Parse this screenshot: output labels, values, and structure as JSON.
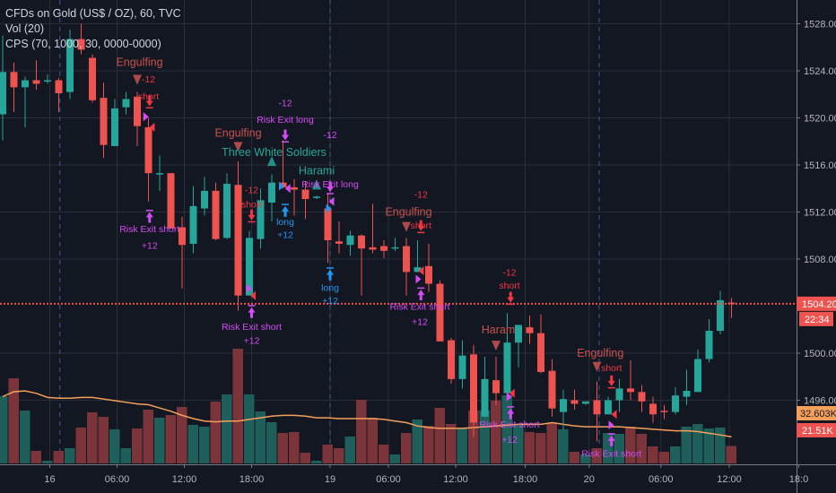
{
  "header": {
    "symbol_line": "CFDs on Gold (US$ / OZ), 60, TVC",
    "volume_indicator": "Vol (20)",
    "strategy_indicator": "CPS (70, 1000, 30, 0000-0000)"
  },
  "colors": {
    "background": "#131722",
    "up": "#26a69a",
    "down": "#ef5350",
    "volume_up": "#1f5f5b",
    "volume_down": "#7b3439",
    "volume_ma": "#f5a05a",
    "grid": "#2a2e39",
    "pattern_bear": "#c9524f",
    "pattern_bull": "#26a69a",
    "signal_short": "#f23645",
    "risk_exit": "#d54cf5",
    "signal_long": "#2196f3"
  },
  "chart_data": {
    "type": "candlestick",
    "title": "CFDs on Gold (US$ / OZ), 60, TVC",
    "ylim": [
      1490.5,
      1530
    ],
    "y_ticks": [
      "1528.00",
      "1524.00",
      "1520.00",
      "1516.00",
      "1512.00",
      "1508.00",
      "1500.00",
      "1496.00"
    ],
    "y_tick_values": [
      1528,
      1524,
      1520,
      1516,
      1512,
      1508,
      1500,
      1496
    ],
    "x_ticks": [
      {
        "label": "16",
        "at": 4.2
      },
      {
        "label": "06:00",
        "at": 10.2
      },
      {
        "label": "12:00",
        "at": 16.2
      },
      {
        "label": "18:00",
        "at": 22.2
      },
      {
        "label": "19",
        "at": 29.2
      },
      {
        "label": "06:00",
        "at": 34.4
      },
      {
        "label": "12:00",
        "at": 40.4
      },
      {
        "label": "18:00",
        "at": 46.6
      },
      {
        "label": "20",
        "at": 52.3
      },
      {
        "label": "06:00",
        "at": 58.7
      },
      {
        "label": "12:00",
        "at": 64.8
      },
      {
        "label": "18:0",
        "at": 71
      }
    ],
    "session_breaks": [
      5.1,
      29.2,
      53.2
    ],
    "ohlc": [
      [
        1520.3,
        1527.0,
        1518.1,
        1523.9
      ],
      [
        1523.9,
        1524.7,
        1520.5,
        1522.6
      ],
      [
        1522.6,
        1523.5,
        1519.2,
        1523.2
      ],
      [
        1523.2,
        1524.9,
        1522.4,
        1522.9
      ],
      [
        1523.1,
        1523.7,
        1522.9,
        1523.2
      ],
      [
        1523.2,
        1523.4,
        1520.5,
        1522.1
      ],
      [
        1522.2,
        1527.5,
        1521.6,
        1526.7
      ],
      [
        1526.7,
        1528.0,
        1525.4,
        1525.8
      ],
      [
        1525.1,
        1525.4,
        1521.3,
        1521.5
      ],
      [
        1521.7,
        1523.0,
        1516.6,
        1517.7
      ],
      [
        1517.6,
        1521.6,
        1517.6,
        1520.8
      ],
      [
        1520.9,
        1522.2,
        1520.3,
        1521.6
      ],
      [
        1521.8,
        1522.2,
        1517.6,
        1519.3
      ],
      [
        1519.2,
        1520.0,
        1512.9,
        1515.3
      ],
      [
        1515.2,
        1516.8,
        1513.8,
        1515.3
      ],
      [
        1515.3,
        1515.3,
        1510.6,
        1510.6
      ],
      [
        1510.7,
        1511.6,
        1505.5,
        1509.2
      ],
      [
        1509.3,
        1514.2,
        1508.5,
        1512.5
      ],
      [
        1512.3,
        1515.0,
        1511.7,
        1513.8
      ],
      [
        1513.8,
        1514.5,
        1509.6,
        1509.7
      ],
      [
        1509.8,
        1515.3,
        1509.7,
        1514.4
      ],
      [
        1514.3,
        1516.3,
        1503.6,
        1504.9
      ],
      [
        1504.9,
        1510.4,
        1504.9,
        1509.8
      ],
      [
        1509.7,
        1514.0,
        1508.9,
        1513.0
      ],
      [
        1512.8,
        1515.2,
        1511.2,
        1514.5
      ],
      [
        1514.5,
        1518.1,
        1514.0,
        1514.1
      ],
      [
        1514.1,
        1514.8,
        1511.7,
        1513.9
      ],
      [
        1513.9,
        1514.6,
        1511.4,
        1513.1
      ],
      [
        1513.2,
        1513.4,
        1513.1,
        1513.3
      ],
      [
        1512.3,
        1513.6,
        1507.7,
        1509.6
      ],
      [
        1509.5,
        1511.2,
        1508.5,
        1509.3
      ],
      [
        1509.2,
        1510.4,
        1508.3,
        1510.0
      ],
      [
        1510.0,
        1510.1,
        1504.9,
        1508.9
      ],
      [
        1509.0,
        1512.7,
        1508.5,
        1508.8
      ],
      [
        1509.1,
        1509.6,
        1508.1,
        1508.7
      ],
      [
        1508.9,
        1509.8,
        1508.7,
        1509.0
      ],
      [
        1509.1,
        1509.8,
        1504.9,
        1506.9
      ],
      [
        1506.9,
        1509.6,
        1506.9,
        1507.3
      ],
      [
        1507.4,
        1509.3,
        1505.2,
        1505.9
      ],
      [
        1505.9,
        1506.2,
        1501.0,
        1501.0
      ],
      [
        1501.1,
        1501.3,
        1497.4,
        1497.8
      ],
      [
        1497.8,
        1501.1,
        1497.0,
        1499.8
      ],
      [
        1499.9,
        1500.7,
        1492.9,
        1494.1
      ],
      [
        1494.6,
        1499.7,
        1494.6,
        1497.8
      ],
      [
        1497.7,
        1499.7,
        1495.6,
        1496.6
      ],
      [
        1496.6,
        1503.4,
        1496.6,
        1500.9
      ],
      [
        1500.9,
        1502.4,
        1498.8,
        1502.4
      ],
      [
        1502.2,
        1503.2,
        1500.8,
        1501.7
      ],
      [
        1501.7,
        1503.3,
        1498.3,
        1498.4
      ],
      [
        1498.5,
        1499.5,
        1494.6,
        1495.3
      ],
      [
        1495.0,
        1496.9,
        1493.5,
        1496.1
      ],
      [
        1496.0,
        1496.9,
        1495.2,
        1495.7
      ],
      [
        1495.7,
        1495.9,
        1495.6,
        1495.9
      ],
      [
        1496.0,
        1497.6,
        1492.5,
        1494.8
      ],
      [
        1494.8,
        1496.3,
        1494.8,
        1496.0
      ],
      [
        1496.0,
        1497.8,
        1495.0,
        1497.0
      ],
      [
        1497.0,
        1499.4,
        1496.0,
        1496.7
      ],
      [
        1496.7,
        1497.3,
        1495.0,
        1495.9
      ],
      [
        1495.7,
        1496.3,
        1494.1,
        1494.8
      ],
      [
        1495.1,
        1495.6,
        1494.4,
        1495.0
      ],
      [
        1495.0,
        1497.1,
        1494.8,
        1496.4
      ],
      [
        1496.3,
        1498.6,
        1495.6,
        1496.8
      ],
      [
        1496.7,
        1500.3,
        1496.7,
        1499.5
      ],
      [
        1499.5,
        1502.9,
        1499.2,
        1501.9
      ],
      [
        1501.9,
        1505.3,
        1501.6,
        1504.5
      ],
      [
        1504.3,
        1504.7,
        1503.0,
        1504.2
      ]
    ],
    "volume_k": [
      82.5,
      104.5,
      64.9,
      15.4,
      3.3,
      15.4,
      18.7,
      44,
      62.7,
      57.2,
      41.8,
      18.7,
      42.9,
      66,
      56.1,
      59.4,
      69.3,
      47.3,
      45.1,
      75.9,
      84.7,
      140.8,
      84.7,
      63.8,
      50.6,
      37.4,
      38.5,
      13.2,
      3.3,
      23.1,
      18.7,
      33,
      78.1,
      56.1,
      23.1,
      11,
      37.4,
      53.9,
      46.2,
      68.2,
      48.4,
      42.9,
      64.9,
      64.9,
      77,
      83.6,
      47.3,
      38.5,
      37.4,
      49.5,
      41.8,
      14.3,
      11,
      18.7,
      37.4,
      36.3,
      45.1,
      36.3,
      20.9,
      14.3,
      20.9,
      45.1,
      48.4,
      42.9,
      44,
      21.51
    ],
    "volume_ma_k": [
      82,
      88,
      89,
      86,
      81,
      80,
      80,
      81,
      81,
      79,
      77,
      75,
      73,
      72,
      68,
      64,
      59,
      55,
      52,
      51,
      52,
      52,
      54,
      56,
      58,
      59,
      59,
      58,
      56,
      56,
      55,
      55,
      55,
      55,
      54,
      52,
      50,
      46,
      44,
      43,
      43,
      43,
      44,
      45,
      46,
      47,
      48,
      48,
      48,
      50,
      48,
      46,
      45,
      45,
      45,
      45,
      44,
      43,
      42,
      41,
      40,
      40,
      39,
      37,
      35,
      32.6
    ],
    "last_price": {
      "value": 1504.2,
      "label": "1504.20",
      "countdown": "22:34"
    },
    "volume_labels": {
      "ma": "32.603K",
      "last": "21.51K"
    },
    "annotations": [
      {
        "i": 12.2,
        "p": 1527.1,
        "text": "Engulfing",
        "kind": "pattern_bear",
        "big": true
      },
      {
        "i": 13,
        "p": 1523.3,
        "text": "-12",
        "kind": "signal_short"
      },
      {
        "i": 13,
        "p": 1522.4,
        "text": "short",
        "kind": "signal_short"
      },
      {
        "i": 13.1,
        "p": 1510.6,
        "text": "Risk Exit short",
        "kind": "risk_exit"
      },
      {
        "i": 13.1,
        "p": 1509.2,
        "text": "+12",
        "kind": "risk_exit"
      },
      {
        "i": 21,
        "p": 1518.7,
        "text": "Engulfing",
        "kind": "pattern_bear",
        "big": true
      },
      {
        "i": 24.2,
        "p": 1517.6,
        "text": "Three White Soldiers",
        "kind": "pattern_bull",
        "big": true
      },
      {
        "i": 25.2,
        "p": 1521.3,
        "text": "-12",
        "kind": "risk_exit"
      },
      {
        "i": 25.2,
        "p": 1519.9,
        "text": "Risk Exit long",
        "kind": "risk_exit"
      },
      {
        "i": 22.2,
        "p": 1513.9,
        "text": "-12",
        "kind": "signal_short"
      },
      {
        "i": 22.2,
        "p": 1512.7,
        "text": "short",
        "kind": "signal_short"
      },
      {
        "i": 22.2,
        "p": 1502.3,
        "text": "Risk Exit short",
        "kind": "risk_exit"
      },
      {
        "i": 22.2,
        "p": 1501.1,
        "text": "+12",
        "kind": "risk_exit"
      },
      {
        "i": 25.2,
        "p": 1511.2,
        "text": "long",
        "kind": "signal_long"
      },
      {
        "i": 25.2,
        "p": 1510.1,
        "text": "+12",
        "kind": "signal_long"
      },
      {
        "i": 28,
        "p": 1515.5,
        "text": "Harami",
        "kind": "pattern_bull",
        "big": true
      },
      {
        "i": 29.2,
        "p": 1516.7,
        "text": "-12",
        "kind": "risk_exit"
      },
      {
        "i": 29.2,
        "p": 1515.4,
        "text": "Risk Exit long",
        "kind": "risk_exit"
      },
      {
        "i": 29.2,
        "p": 1505.6,
        "text": "long",
        "kind": "signal_long"
      },
      {
        "i": 29.2,
        "p": 1504.5,
        "text": "+12",
        "kind": "signal_long"
      },
      {
        "i": 36.2,
        "p": 1512.0,
        "text": "Engulfing",
        "kind": "pattern_bear",
        "big": true
      },
      {
        "i": 37.3,
        "p": 1513.0,
        "text": "-12",
        "kind": "signal_short"
      },
      {
        "i": 37.3,
        "p": 1511.9,
        "text": "short",
        "kind": "signal_short"
      },
      {
        "i": 37.2,
        "p": 1504.0,
        "text": "Risk Exit short",
        "kind": "risk_exit"
      },
      {
        "i": 37.2,
        "p": 1502.7,
        "text": "+12",
        "kind": "risk_exit"
      },
      {
        "i": 45.2,
        "p": 1506.9,
        "text": "-12",
        "kind": "signal_short"
      },
      {
        "i": 45.2,
        "p": 1505.8,
        "text": "short",
        "kind": "signal_short"
      },
      {
        "i": 44.2,
        "p": 1502.0,
        "text": "Haram",
        "kind": "pattern_bear",
        "big": true
      },
      {
        "i": 45.2,
        "p": 1494.0,
        "text": "Risk Exit short",
        "kind": "risk_exit"
      },
      {
        "i": 45.2,
        "p": 1492.7,
        "text": "+12",
        "kind": "risk_exit"
      },
      {
        "i": 53.3,
        "p": 1500.0,
        "text": "Engulfing",
        "kind": "pattern_bear",
        "big": true
      },
      {
        "i": 54.3,
        "p": 1498.8,
        "text": "short",
        "kind": "signal_short"
      },
      {
        "i": 54.3,
        "p": 1491.5,
        "text": "Risk Exit short",
        "kind": "risk_exit"
      }
    ],
    "markers": [
      {
        "i": 12,
        "p": 1523.2,
        "shape": "tri-down",
        "kind": "pattern_bear"
      },
      {
        "i": 13.1,
        "p": 1521.3,
        "shape": "arrow-down",
        "kind": "signal_short"
      },
      {
        "i": 13.1,
        "p": 1511.7,
        "shape": "arrow-up",
        "kind": "risk_exit"
      },
      {
        "i": 21,
        "p": 1517.5,
        "shape": "tri-down",
        "kind": "pattern_bear"
      },
      {
        "i": 24,
        "p": 1516.3,
        "shape": "tri-up",
        "kind": "pattern_bull"
      },
      {
        "i": 25.2,
        "p": 1518.4,
        "shape": "arrow-down",
        "kind": "risk_exit"
      },
      {
        "i": 22.2,
        "p": 1511.6,
        "shape": "arrow-down",
        "kind": "signal_short"
      },
      {
        "i": 22.2,
        "p": 1503.6,
        "shape": "arrow-up",
        "kind": "risk_exit"
      },
      {
        "i": 25.2,
        "p": 1512.2,
        "shape": "arrow-up",
        "kind": "signal_long"
      },
      {
        "i": 28,
        "p": 1514.3,
        "shape": "tri-up",
        "kind": "pattern_bull"
      },
      {
        "i": 29.2,
        "p": 1514.0,
        "shape": "arrow-down",
        "kind": "risk_exit"
      },
      {
        "i": 29.2,
        "p": 1506.8,
        "shape": "arrow-up",
        "kind": "signal_long"
      },
      {
        "i": 36,
        "p": 1510.7,
        "shape": "tri-down",
        "kind": "pattern_bear"
      },
      {
        "i": 37.3,
        "p": 1510.7,
        "shape": "arrow-down",
        "kind": "signal_short"
      },
      {
        "i": 37.3,
        "p": 1505.1,
        "shape": "arrow-up",
        "kind": "risk_exit"
      },
      {
        "i": 45.3,
        "p": 1504.6,
        "shape": "arrow-down",
        "kind": "signal_short"
      },
      {
        "i": 44,
        "p": 1500.6,
        "shape": "tri-down",
        "kind": "pattern_bear"
      },
      {
        "i": 45.3,
        "p": 1495.0,
        "shape": "arrow-up",
        "kind": "risk_exit"
      },
      {
        "i": 53,
        "p": 1498.8,
        "shape": "tri-down",
        "kind": "pattern_bear"
      },
      {
        "i": 54.3,
        "p": 1497.5,
        "shape": "arrow-down",
        "kind": "signal_short"
      },
      {
        "i": 54.3,
        "p": 1492.7,
        "shape": "arrow-up",
        "kind": "risk_exit"
      },
      {
        "i": 12.7,
        "p": 1520.1,
        "shape": "flag-right",
        "kind": "risk_exit"
      },
      {
        "i": 13.4,
        "p": 1519.2,
        "shape": "flag-left",
        "kind": "signal_short"
      },
      {
        "i": 21.9,
        "p": 1505.5,
        "shape": "flag-right",
        "kind": "risk_exit"
      },
      {
        "i": 22.4,
        "p": 1504.9,
        "shape": "flag-left",
        "kind": "signal_short"
      },
      {
        "i": 24.8,
        "p": 1514.2,
        "shape": "flag-right",
        "kind": "signal_long"
      },
      {
        "i": 25.5,
        "p": 1514.0,
        "shape": "flag-left",
        "kind": "risk_exit"
      },
      {
        "i": 29.0,
        "p": 1512.3,
        "shape": "flag-right",
        "kind": "signal_long"
      },
      {
        "i": 29.4,
        "p": 1512.9,
        "shape": "flag-left",
        "kind": "risk_exit"
      },
      {
        "i": 37.0,
        "p": 1506.3,
        "shape": "flag-right",
        "kind": "risk_exit"
      },
      {
        "i": 37.4,
        "p": 1507.0,
        "shape": "flag-left",
        "kind": "signal_short"
      },
      {
        "i": 45.1,
        "p": 1496.3,
        "shape": "flag-right",
        "kind": "risk_exit"
      },
      {
        "i": 45.5,
        "p": 1496.6,
        "shape": "flag-left",
        "kind": "signal_short"
      },
      {
        "i": 54.2,
        "p": 1493.9,
        "shape": "flag-right",
        "kind": "risk_exit"
      },
      {
        "i": 54.6,
        "p": 1494.8,
        "shape": "flag-left",
        "kind": "signal_short"
      }
    ]
  }
}
